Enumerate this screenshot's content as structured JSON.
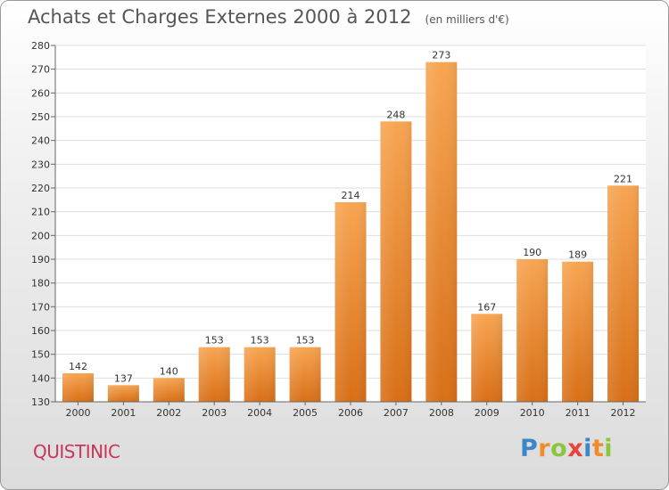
{
  "title": "Achats et Charges Externes 2000 à 2012",
  "unit_note": "(en milliers d'€)",
  "commune": "QUISTINIC",
  "brand": {
    "text": "Proxiti",
    "letters": [
      {
        "ch": "P",
        "color": "#3a87c8"
      },
      {
        "ch": "r",
        "color": "#f08c2a"
      },
      {
        "ch": "o",
        "color": "#8cc63f"
      },
      {
        "ch": "x",
        "color": "#e8423c"
      },
      {
        "ch": "i",
        "color": "#3a87c8"
      },
      {
        "ch": "t",
        "color": "#f08c2a"
      },
      {
        "ch": "i",
        "color": "#8cc63f"
      }
    ]
  },
  "chart_data": {
    "type": "bar",
    "categories": [
      "2000",
      "2001",
      "2002",
      "2003",
      "2004",
      "2005",
      "2006",
      "2007",
      "2008",
      "2009",
      "2010",
      "2011",
      "2012"
    ],
    "values": [
      142,
      137,
      140,
      153,
      153,
      153,
      214,
      248,
      273,
      167,
      190,
      189,
      221
    ],
    "ylim": [
      130,
      280
    ],
    "yticks": [
      130,
      140,
      150,
      160,
      170,
      180,
      190,
      200,
      210,
      220,
      230,
      240,
      250,
      260,
      270,
      280
    ],
    "grid": true,
    "bar_color_top": "#f7a552",
    "bar_color_bottom": "#d86f17"
  }
}
